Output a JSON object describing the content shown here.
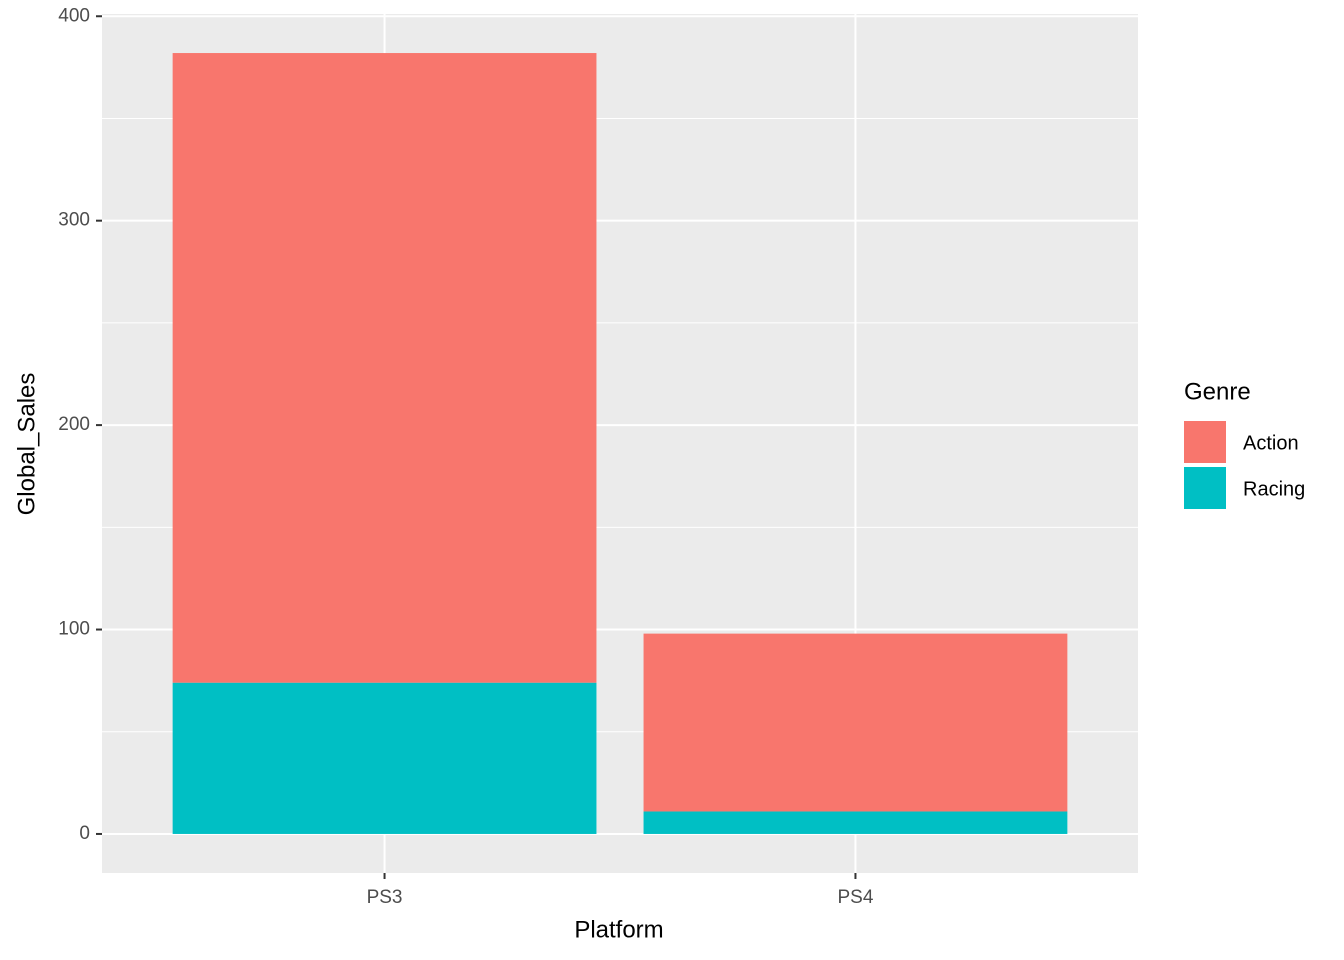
{
  "chart_data": {
    "type": "stacked-bar",
    "x_label": "Platform",
    "y_label": "Global_Sales",
    "categories": [
      "PS3",
      "PS4"
    ],
    "series": [
      {
        "name": "Action",
        "color": "#f8766d",
        "values": [
          308,
          87
        ]
      },
      {
        "name": "Racing",
        "color": "#00bfc4",
        "values": [
          74,
          11
        ]
      }
    ],
    "ylim": [
      -19.1,
      401.1
    ],
    "yticks": [
      0,
      100,
      200,
      300,
      400
    ],
    "grid": true,
    "legend_title": "Genre",
    "legend_position": "right"
  }
}
